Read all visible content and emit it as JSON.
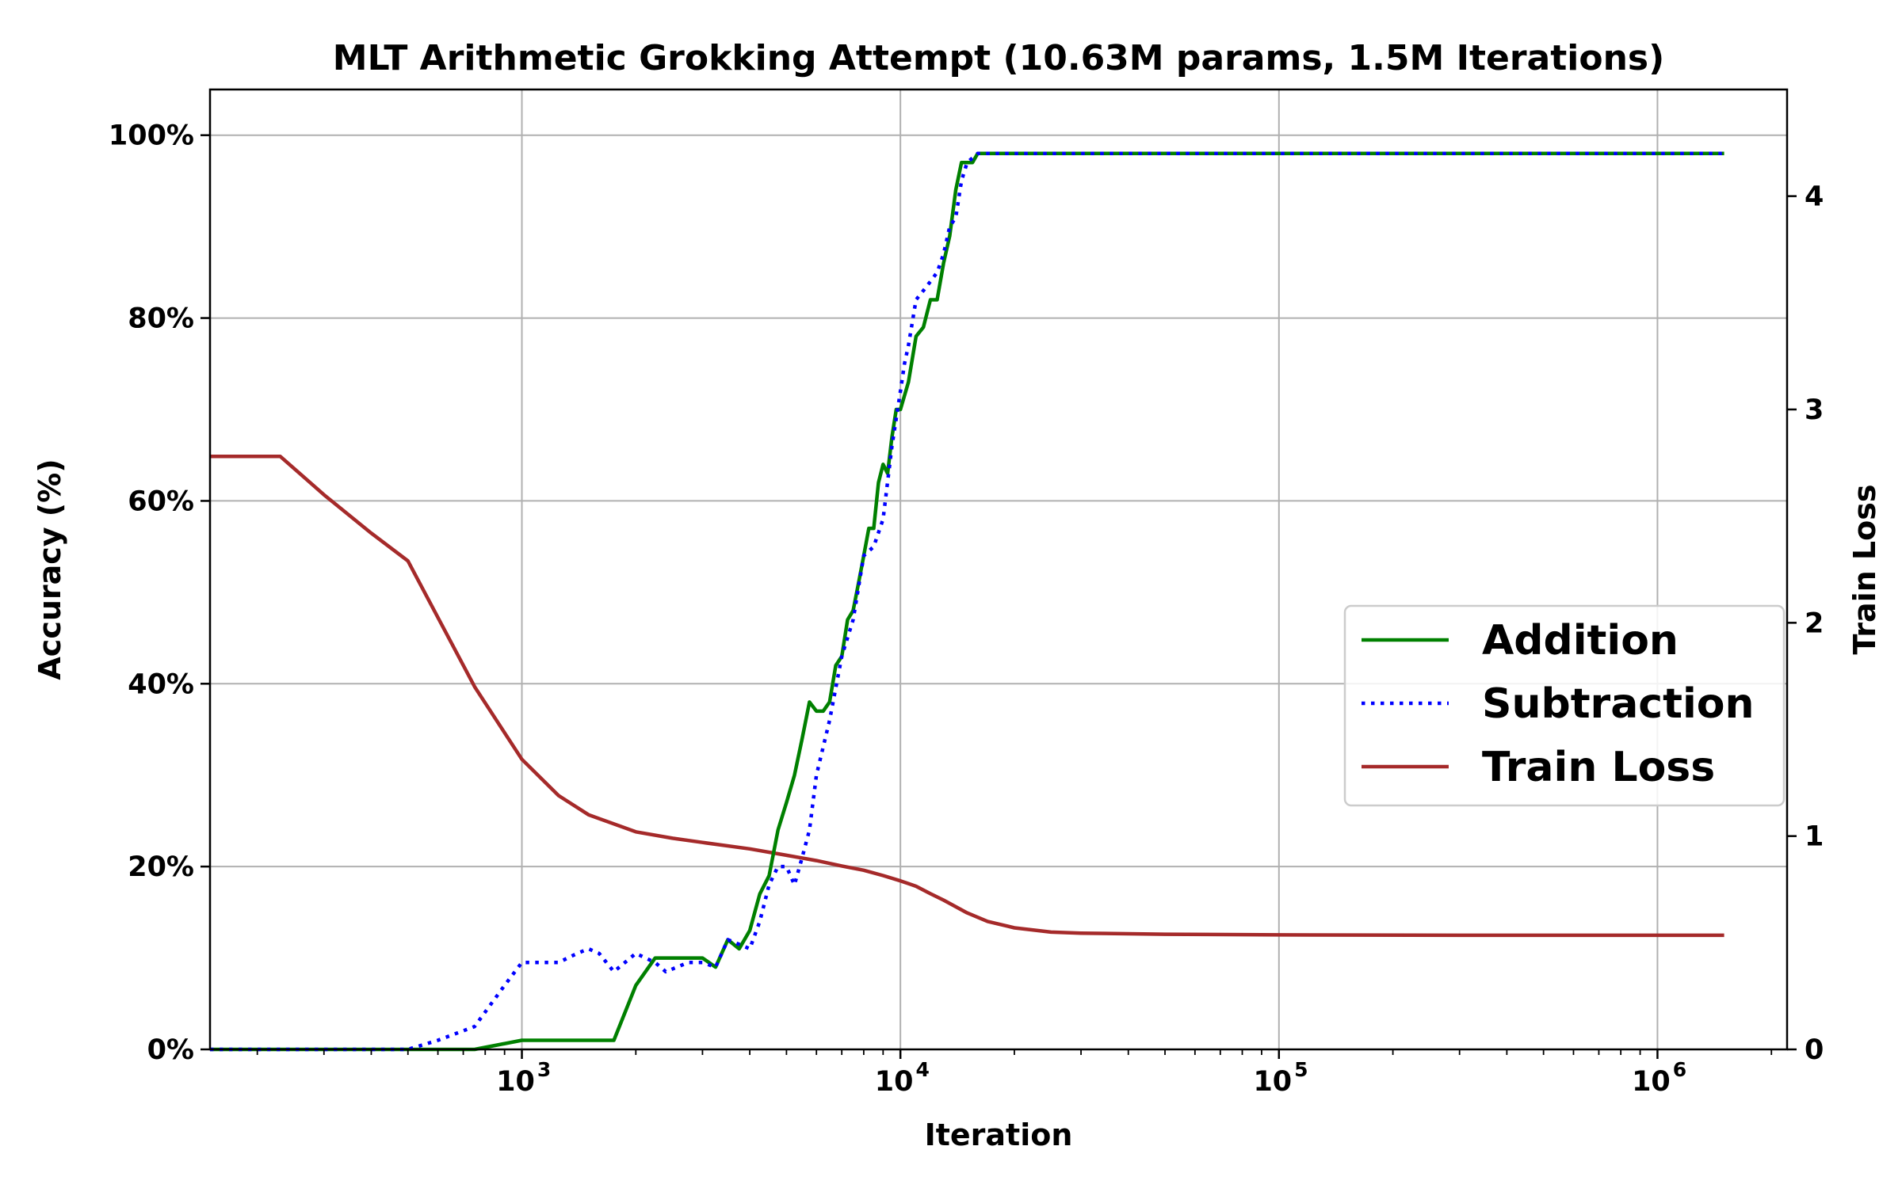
{
  "chart_data": {
    "type": "line",
    "title": "MLT Arithmetic Grokking Attempt (10.63M params, 1.5M Iterations)",
    "xlabel": "Iteration",
    "ylabel": "Accuracy (%)",
    "y2label": "Train Loss",
    "xscale": "log",
    "xlim": [
      150,
      2200000
    ],
    "ylim": [
      0,
      105
    ],
    "y2lim": [
      0,
      4.5
    ],
    "x_ticks": [
      {
        "base": "10",
        "exp": "3",
        "value": 1000
      },
      {
        "base": "10",
        "exp": "4",
        "value": 10000
      },
      {
        "base": "10",
        "exp": "5",
        "value": 100000
      },
      {
        "base": "10",
        "exp": "6",
        "value": 1000000
      }
    ],
    "y_ticks": [
      {
        "label": "0%",
        "value": 0
      },
      {
        "label": "20%",
        "value": 20
      },
      {
        "label": "40%",
        "value": 40
      },
      {
        "label": "60%",
        "value": 60
      },
      {
        "label": "80%",
        "value": 80
      },
      {
        "label": "100%",
        "value": 100
      }
    ],
    "y2_ticks": [
      {
        "label": "0",
        "value": 0
      },
      {
        "label": "1",
        "value": 1
      },
      {
        "label": "2",
        "value": 2
      },
      {
        "label": "3",
        "value": 3
      },
      {
        "label": "4",
        "value": 4
      }
    ],
    "grid": true,
    "legend_position": "center-right",
    "series": [
      {
        "name": "Addition",
        "axis": "left",
        "color": "#008000",
        "style": "solid",
        "points": [
          [
            150,
            0
          ],
          [
            500,
            0
          ],
          [
            750,
            0
          ],
          [
            1000,
            1
          ],
          [
            1250,
            1
          ],
          [
            1500,
            1
          ],
          [
            1750,
            1
          ],
          [
            2000,
            7
          ],
          [
            2250,
            10
          ],
          [
            2500,
            10
          ],
          [
            2750,
            10
          ],
          [
            3000,
            10
          ],
          [
            3250,
            9
          ],
          [
            3500,
            12
          ],
          [
            3750,
            11
          ],
          [
            4000,
            13
          ],
          [
            4250,
            17
          ],
          [
            4500,
            19
          ],
          [
            4750,
            24
          ],
          [
            5000,
            27
          ],
          [
            5250,
            30
          ],
          [
            5500,
            34
          ],
          [
            5750,
            38
          ],
          [
            6000,
            37
          ],
          [
            6250,
            37
          ],
          [
            6500,
            38
          ],
          [
            6750,
            42
          ],
          [
            7000,
            43
          ],
          [
            7250,
            47
          ],
          [
            7500,
            48
          ],
          [
            7750,
            51
          ],
          [
            8000,
            54
          ],
          [
            8250,
            57
          ],
          [
            8500,
            57
          ],
          [
            8750,
            62
          ],
          [
            9000,
            64
          ],
          [
            9250,
            63
          ],
          [
            9500,
            67
          ],
          [
            9750,
            70
          ],
          [
            10000,
            70
          ],
          [
            10500,
            73
          ],
          [
            11000,
            78
          ],
          [
            11500,
            79
          ],
          [
            12000,
            82
          ],
          [
            12500,
            82
          ],
          [
            13000,
            86
          ],
          [
            13500,
            89
          ],
          [
            14000,
            94
          ],
          [
            14500,
            97
          ],
          [
            15000,
            97
          ],
          [
            15500,
            97
          ],
          [
            16000,
            98
          ],
          [
            20000,
            98
          ],
          [
            50000,
            98
          ],
          [
            100000,
            98
          ],
          [
            500000,
            98
          ],
          [
            1500000,
            98
          ]
        ]
      },
      {
        "name": "Subtraction",
        "axis": "left",
        "color": "#0000ff",
        "style": "dotted",
        "points": [
          [
            150,
            0
          ],
          [
            500,
            0
          ],
          [
            600,
            1
          ],
          [
            750,
            2.5
          ],
          [
            900,
            7
          ],
          [
            1000,
            9.5
          ],
          [
            1250,
            9.5
          ],
          [
            1400,
            10.5
          ],
          [
            1500,
            11
          ],
          [
            1600,
            10.5
          ],
          [
            1750,
            8.5
          ],
          [
            2000,
            10.5
          ],
          [
            2250,
            9.5
          ],
          [
            2400,
            8.5
          ],
          [
            2750,
            9.5
          ],
          [
            3000,
            9.5
          ],
          [
            3250,
            9
          ],
          [
            3500,
            12
          ],
          [
            3750,
            11.5
          ],
          [
            4000,
            11
          ],
          [
            4250,
            14
          ],
          [
            4500,
            18
          ],
          [
            4750,
            20
          ],
          [
            5000,
            20
          ],
          [
            5250,
            18
          ],
          [
            5500,
            21
          ],
          [
            5750,
            24
          ],
          [
            6000,
            30
          ],
          [
            6500,
            36
          ],
          [
            7000,
            43
          ],
          [
            7500,
            47
          ],
          [
            8000,
            54
          ],
          [
            8500,
            55
          ],
          [
            9000,
            58
          ],
          [
            9500,
            66
          ],
          [
            10000,
            72
          ],
          [
            10250,
            75
          ],
          [
            10500,
            77
          ],
          [
            11000,
            82
          ],
          [
            11500,
            83
          ],
          [
            12000,
            84
          ],
          [
            12500,
            85
          ],
          [
            13000,
            87
          ],
          [
            13500,
            90
          ],
          [
            14000,
            91
          ],
          [
            14500,
            95
          ],
          [
            15000,
            97
          ],
          [
            16000,
            98
          ],
          [
            20000,
            98
          ],
          [
            100000,
            98
          ],
          [
            1500000,
            98
          ]
        ]
      },
      {
        "name": "Train Loss",
        "axis": "right",
        "color": "#a52a2a",
        "style": "solid",
        "points": [
          [
            150,
            2.78
          ],
          [
            230,
            2.78
          ],
          [
            300,
            2.6
          ],
          [
            400,
            2.42
          ],
          [
            500,
            2.29
          ],
          [
            750,
            1.7
          ],
          [
            1000,
            1.36
          ],
          [
            1250,
            1.19
          ],
          [
            1500,
            1.1
          ],
          [
            2000,
            1.02
          ],
          [
            2500,
            0.99
          ],
          [
            3000,
            0.97
          ],
          [
            4000,
            0.94
          ],
          [
            5000,
            0.91
          ],
          [
            6000,
            0.885
          ],
          [
            7000,
            0.86
          ],
          [
            8000,
            0.84
          ],
          [
            9000,
            0.815
          ],
          [
            10000,
            0.79
          ],
          [
            11000,
            0.765
          ],
          [
            12000,
            0.73
          ],
          [
            13000,
            0.7
          ],
          [
            15000,
            0.64
          ],
          [
            17000,
            0.6
          ],
          [
            20000,
            0.57
          ],
          [
            25000,
            0.55
          ],
          [
            30000,
            0.545
          ],
          [
            50000,
            0.54
          ],
          [
            100000,
            0.537
          ],
          [
            300000,
            0.535
          ],
          [
            1000000,
            0.535
          ],
          [
            1500000,
            0.535
          ]
        ]
      }
    ]
  }
}
